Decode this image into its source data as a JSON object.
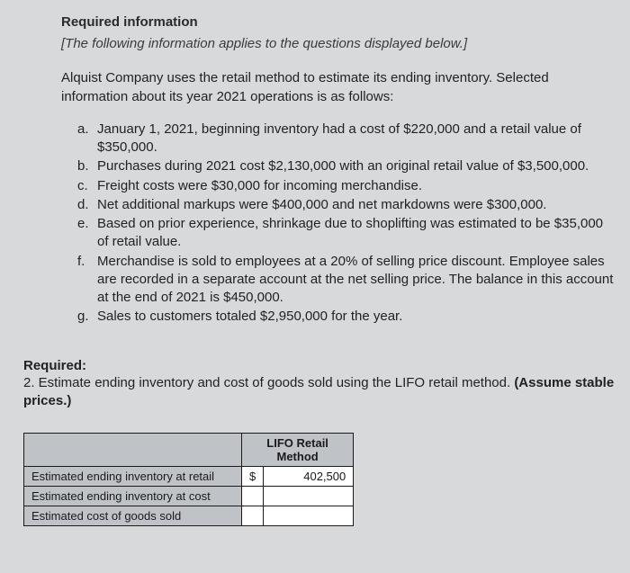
{
  "header": {
    "required_info": "Required information",
    "instruction": "[The following information applies to the questions displayed below.]"
  },
  "intro": "Alquist Company uses the retail method to estimate its ending inventory. Selected information about its year 2021 operations is as follows:",
  "items": [
    {
      "label": "a.",
      "text": "January 1, 2021, beginning inventory had a cost of $220,000 and a retail value of $350,000."
    },
    {
      "label": "b.",
      "text": "Purchases during 2021 cost $2,130,000 with an original retail value of $3,500,000."
    },
    {
      "label": "c.",
      "text": "Freight costs were $30,000 for incoming merchandise."
    },
    {
      "label": "d.",
      "text": "Net additional markups were $400,000 and net markdowns were $300,000."
    },
    {
      "label": "e.",
      "text": "Based on prior experience, shrinkage due to shoplifting was estimated to be $35,000 of retail value."
    },
    {
      "label": "f.",
      "text": "Merchandise is sold to employees at a 20% of selling price discount. Employee sales are recorded in a separate account at the net selling price. The balance in this account at the end of 2021 is $450,000."
    },
    {
      "label": "g.",
      "text": "Sales to customers totaled $2,950,000 for the year."
    }
  ],
  "required": {
    "heading": "Required:",
    "question_prefix": "2. Estimate ending inventory and cost of goods sold using the LIFO retail method. ",
    "question_suffix": "(Assume stable prices.)"
  },
  "table": {
    "header_line1": "LIFO Retail",
    "header_line2": "Method",
    "rows": [
      {
        "label": "Estimated ending inventory at retail",
        "currency": "$",
        "value": "402,500"
      },
      {
        "label": "Estimated ending inventory at cost",
        "currency": "",
        "value": ""
      },
      {
        "label": "Estimated cost of goods sold",
        "currency": "",
        "value": ""
      }
    ]
  },
  "colors": {
    "page_bg": "#d8d9db",
    "cell_header_bg": "#bfc3c7",
    "cell_value_bg": "#ffffff",
    "border": "#1b1b1b",
    "text": "#1a1a1a"
  }
}
